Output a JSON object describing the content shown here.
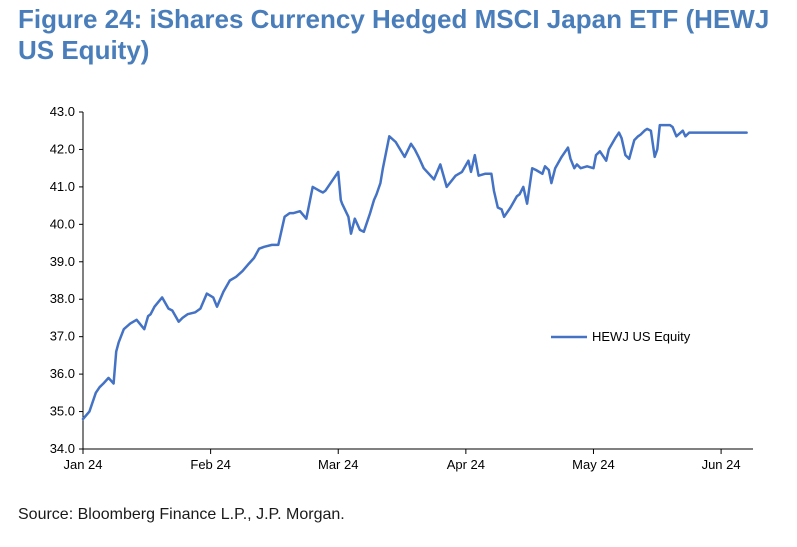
{
  "title": "Figure 24: iShares Currency Hedged MSCI Japan ETF (HEWJ US Equity)",
  "source": "Source: Bloomberg Finance L.P., J.P. Morgan.",
  "chart_data": {
    "type": "line",
    "title": "Figure 24: iShares Currency Hedged MSCI Japan ETF (HEWJ US Equity)",
    "xlabel": "",
    "ylabel": "",
    "ylim": [
      34.0,
      43.0
    ],
    "y_ticks": [
      "34.0",
      "35.0",
      "36.0",
      "37.0",
      "38.0",
      "39.0",
      "40.0",
      "41.0",
      "42.0",
      "43.0"
    ],
    "x_ticks": [
      "Jan 24",
      "Feb 24",
      "Mar 24",
      "Apr 24",
      "May 24",
      "Jun 24"
    ],
    "x_range": [
      0,
      5.25
    ],
    "legend_position": "right",
    "grid": false,
    "color": "#4472c4",
    "series": [
      {
        "name": "HEWJ US Equity",
        "x": [
          0.0,
          0.05,
          0.1,
          0.13,
          0.16,
          0.2,
          0.24,
          0.26,
          0.28,
          0.32,
          0.37,
          0.42,
          0.48,
          0.51,
          0.53,
          0.56,
          0.62,
          0.67,
          0.7,
          0.75,
          0.78,
          0.82,
          0.88,
          0.92,
          0.97,
          1.02,
          1.05,
          1.1,
          1.15,
          1.2,
          1.25,
          1.3,
          1.34,
          1.38,
          1.42,
          1.48,
          1.53,
          1.58,
          1.62,
          1.65,
          1.7,
          1.75,
          1.8,
          1.85,
          1.88,
          1.9,
          2.0,
          2.02,
          2.03,
          2.08,
          2.1,
          2.13,
          2.17,
          2.2,
          2.25,
          2.28,
          2.3,
          2.33,
          2.35,
          2.4,
          2.45,
          2.52,
          2.57,
          2.6,
          2.63,
          2.67,
          2.75,
          2.8,
          2.85,
          2.92,
          2.97,
          3.02,
          3.04,
          3.07,
          3.1,
          3.15,
          3.2,
          3.22,
          3.25,
          3.28,
          3.3,
          3.35,
          3.4,
          3.42,
          3.45,
          3.48,
          3.52,
          3.55,
          3.6,
          3.62,
          3.65,
          3.67,
          3.7,
          3.75,
          3.8,
          3.82,
          3.85,
          3.87,
          3.9,
          3.95,
          4.0,
          4.02,
          4.05,
          4.1,
          4.12,
          4.17,
          4.2,
          4.22,
          4.25,
          4.28,
          4.32,
          4.35,
          4.37,
          4.4,
          4.42,
          4.45,
          4.48,
          4.5,
          4.52,
          4.55,
          4.6,
          4.62,
          4.65,
          4.7,
          4.72,
          4.75,
          4.8,
          4.83,
          4.85,
          4.9,
          4.92,
          4.95,
          5.0,
          5.02,
          5.05,
          5.08,
          5.1,
          5.13,
          5.15,
          5.18,
          5.2
        ],
        "values": [
          34.8,
          35.0,
          35.5,
          35.65,
          35.75,
          35.9,
          35.75,
          36.6,
          36.85,
          37.2,
          37.35,
          37.45,
          37.2,
          37.55,
          37.6,
          37.8,
          38.05,
          37.75,
          37.7,
          37.4,
          37.5,
          37.6,
          37.65,
          37.75,
          38.15,
          38.05,
          37.8,
          38.2,
          38.5,
          38.6,
          38.75,
          38.95,
          39.1,
          39.35,
          39.4,
          39.45,
          39.45,
          40.2,
          40.3,
          40.3,
          40.35,
          40.15,
          41.0,
          40.9,
          40.85,
          40.9,
          41.4,
          40.65,
          40.55,
          40.2,
          39.75,
          40.15,
          39.85,
          39.8,
          40.3,
          40.65,
          40.8,
          41.1,
          41.5,
          42.35,
          42.2,
          41.8,
          42.15,
          42.0,
          41.8,
          41.5,
          41.2,
          41.6,
          41.0,
          41.3,
          41.4,
          41.7,
          41.4,
          41.85,
          41.3,
          41.35,
          41.35,
          40.9,
          40.45,
          40.4,
          40.2,
          40.45,
          40.75,
          40.8,
          41.0,
          40.55,
          41.5,
          41.45,
          41.35,
          41.55,
          41.45,
          41.1,
          41.5,
          41.8,
          42.05,
          41.75,
          41.5,
          41.6,
          41.5,
          41.55,
          41.5,
          41.85,
          41.95,
          41.7,
          42.0,
          42.3,
          42.45,
          42.3,
          41.85,
          41.75,
          42.25,
          42.35,
          42.4,
          42.5,
          42.55,
          42.5,
          41.8,
          42.0,
          42.65,
          42.65,
          42.65,
          42.6,
          42.35,
          42.5,
          42.35,
          42.45,
          42.45,
          42.45,
          42.45,
          42.45,
          42.45,
          42.45,
          42.45,
          42.45,
          42.45,
          42.45,
          42.45,
          42.45,
          42.45,
          42.45,
          42.45
        ]
      }
    ]
  }
}
